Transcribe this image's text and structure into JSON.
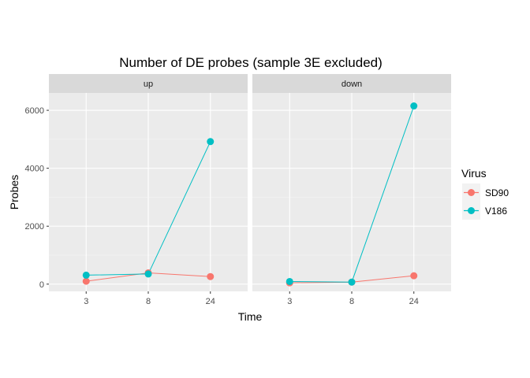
{
  "chart_data": {
    "type": "line",
    "title": "Number of DE probes (sample 3E excluded)",
    "xlabel": "Time",
    "ylabel": "Probes",
    "x_categories": [
      "3",
      "8",
      "24"
    ],
    "y_ticks": [
      0,
      2000,
      4000,
      6000
    ],
    "ylim": [
      -250,
      6600
    ],
    "facets": [
      "up",
      "down"
    ],
    "legend": {
      "title": "Virus",
      "position": "right"
    },
    "series": [
      {
        "name": "SD90",
        "color": "#F8766D",
        "up": [
          100,
          390,
          260
        ],
        "down": [
          45,
          70,
          290
        ]
      },
      {
        "name": "V186",
        "color": "#00BFC4",
        "up": [
          310,
          350,
          4920
        ],
        "down": [
          90,
          70,
          6150
        ]
      }
    ]
  }
}
